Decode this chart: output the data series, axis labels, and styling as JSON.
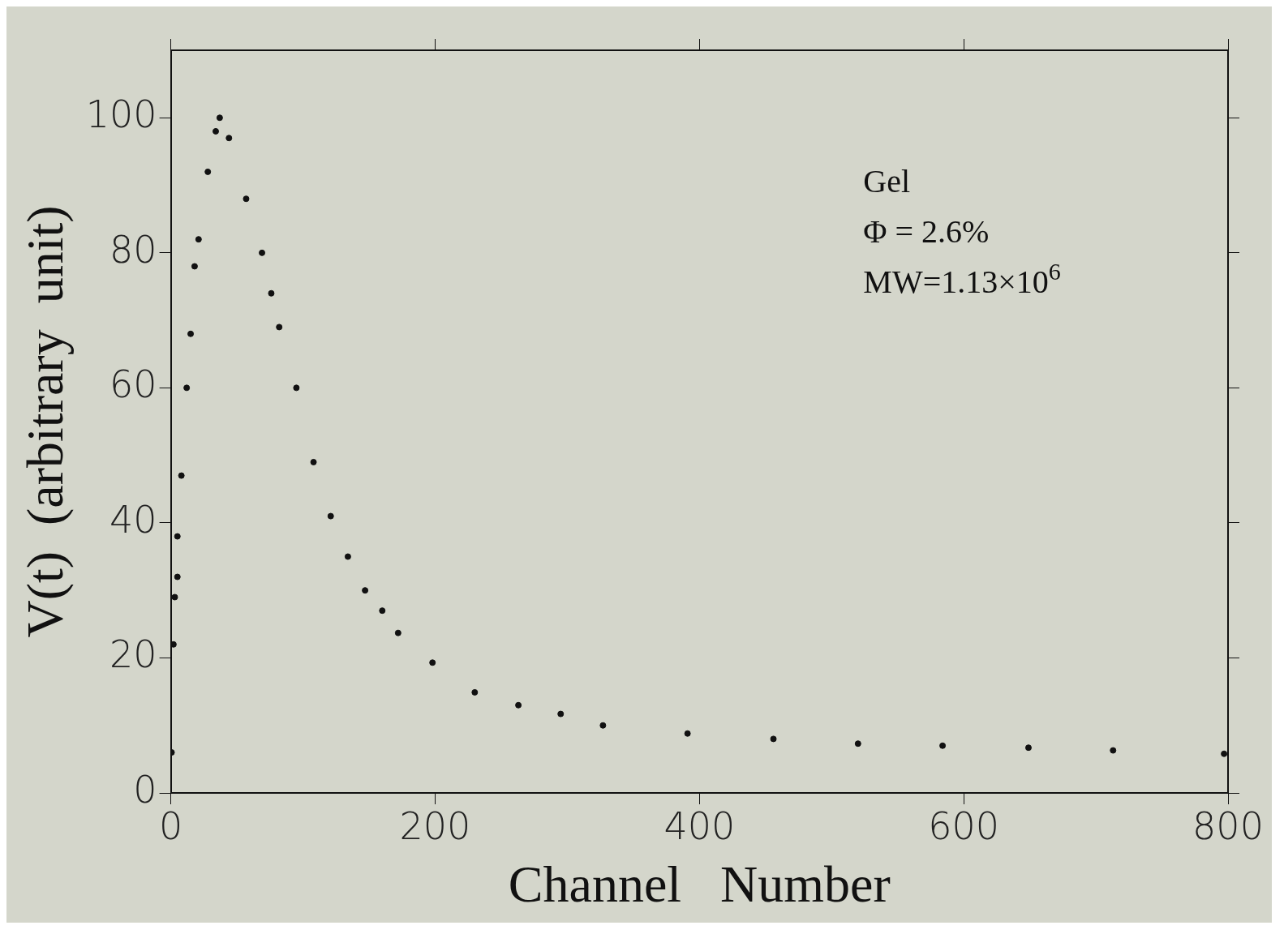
{
  "chart_data": {
    "type": "scatter",
    "xlabel": "Channel   Number",
    "ylabel": "V(t)  (arbitrary  unit)",
    "annotations": [
      "Gel",
      "Φ = 2.6%",
      "MW=1.13×10$^{6}$"
    ],
    "series": [
      {
        "color": "#111111",
        "x": [
          0.6,
          2,
          3,
          5,
          5,
          8,
          12,
          15,
          18,
          21,
          28,
          34,
          37,
          44,
          57,
          69,
          76,
          82,
          95,
          108,
          121,
          134,
          147,
          160,
          172,
          198,
          230,
          263,
          295,
          327,
          391,
          456,
          520,
          584,
          649,
          713,
          797
        ],
        "values": [
          6,
          22,
          29,
          32,
          38,
          47,
          60,
          68,
          78,
          82,
          92,
          98,
          100,
          97,
          88,
          80,
          74,
          69,
          60,
          49,
          41,
          35,
          30,
          27,
          23.7,
          19.3,
          14.9,
          13,
          11.7,
          10,
          8.8,
          8,
          7.3,
          7,
          6.7,
          6.3,
          5.8
        ]
      }
    ],
    "xlim": [
      0,
      800
    ],
    "xticks": [
      0,
      200,
      400,
      600,
      800
    ],
    "ylim": [
      0,
      110
    ],
    "yticks": [
      0,
      20,
      40,
      60,
      80,
      100
    ],
    "grid": false,
    "legend": false,
    "marker": "circle"
  }
}
